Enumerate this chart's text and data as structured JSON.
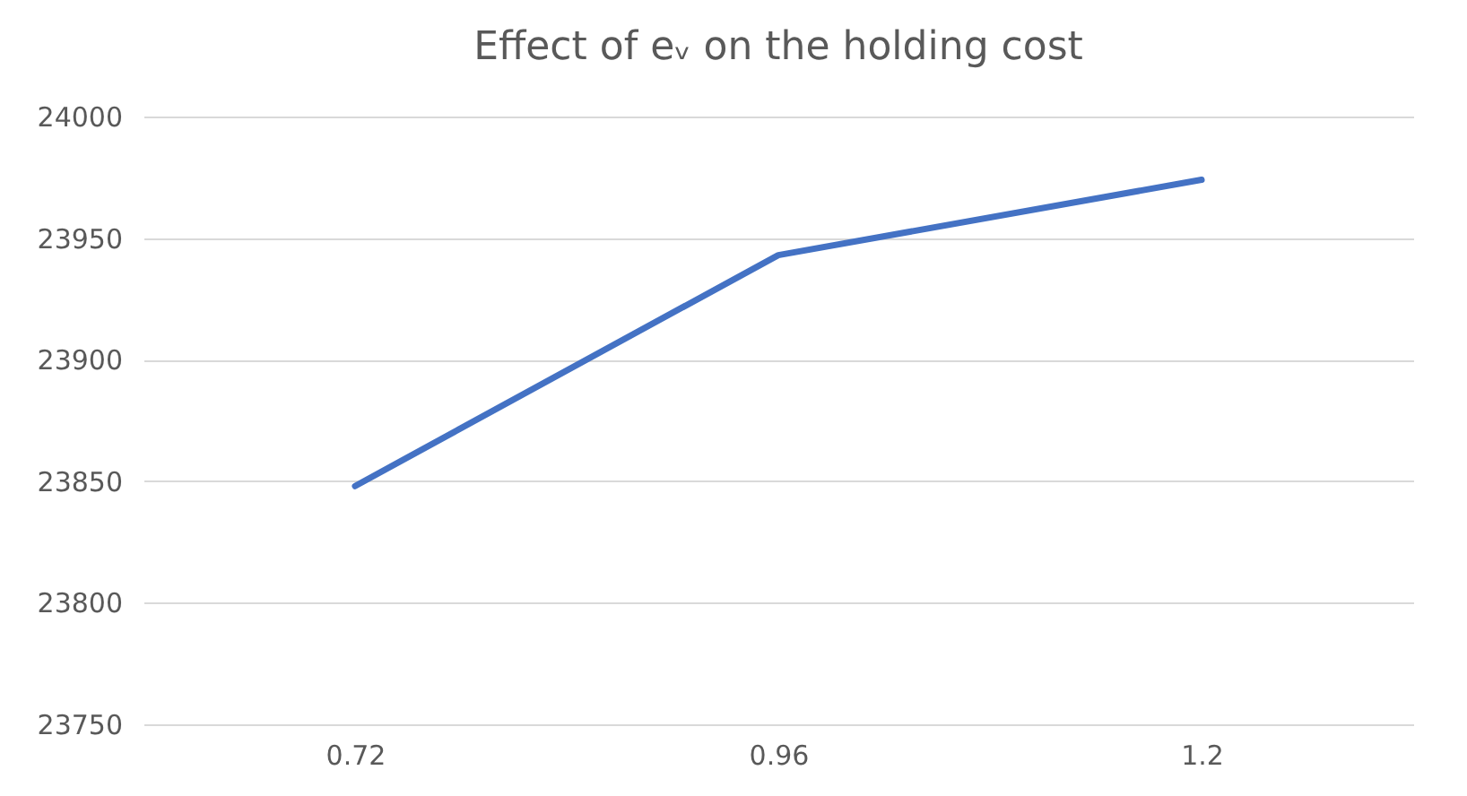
{
  "chart_data": {
    "type": "line",
    "title": "Effect of eᵥ on the holding cost",
    "categories": [
      "0.72",
      "0.96",
      "1.2"
    ],
    "series": [
      {
        "color": "#4472c4",
        "values": [
          23848,
          23943,
          23974
        ]
      }
    ],
    "ylim": [
      23750,
      24000
    ],
    "yticks": [
      23750,
      23800,
      23850,
      23900,
      23950,
      24000
    ],
    "grid": "y",
    "marker": "none",
    "line_style": "solid"
  }
}
